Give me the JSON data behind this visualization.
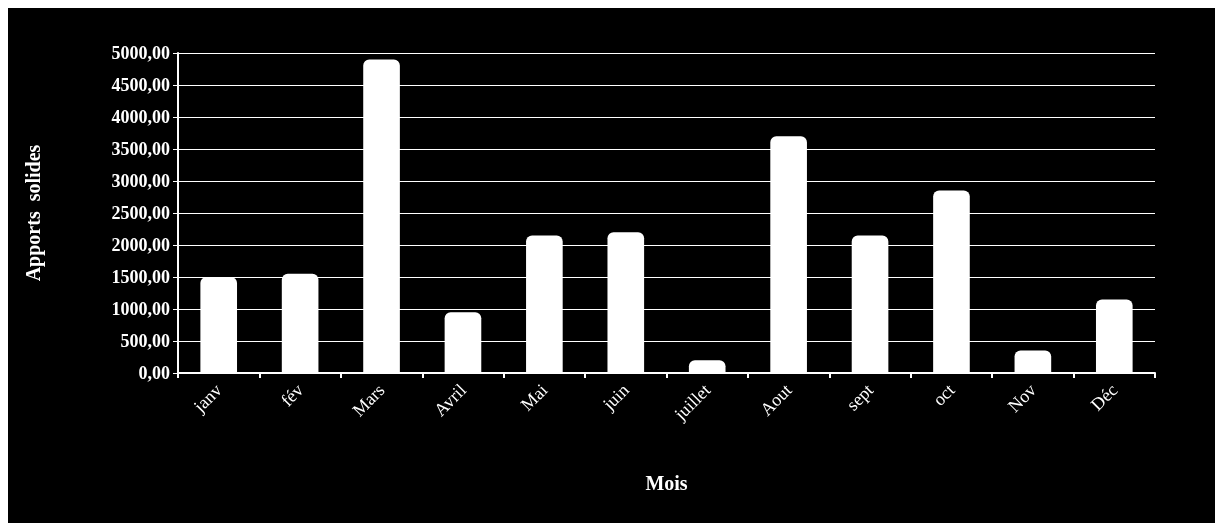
{
  "chart_data": {
    "type": "bar",
    "xlabel": "Mois",
    "ylabel": "Apports  solides",
    "categories": [
      "janv",
      "fév",
      "Mars",
      "Avril",
      "Mai",
      "juin",
      "juillet",
      "Aout",
      "sept",
      "oct",
      "Nov",
      "Déc"
    ],
    "values": [
      1500,
      1550,
      4900,
      950,
      2150,
      2200,
      200,
      3700,
      2150,
      2850,
      350,
      1150
    ],
    "color": "#ffffff",
    "ylim": [
      0,
      5000
    ],
    "yticks": [
      {
        "value": 0,
        "label": "0,00"
      },
      {
        "value": 500,
        "label": "500,00"
      },
      {
        "value": 1000,
        "label": "1000,00"
      },
      {
        "value": 1500,
        "label": "1500,00"
      },
      {
        "value": 2000,
        "label": "2000,00"
      },
      {
        "value": 2500,
        "label": "2500,00"
      },
      {
        "value": 3000,
        "label": "3000,00"
      },
      {
        "value": 3500,
        "label": "3500,00"
      },
      {
        "value": 4000,
        "label": "4000,00"
      },
      {
        "value": 4500,
        "label": "4500,00"
      },
      {
        "value": 5000,
        "label": "5000,00"
      }
    ],
    "grid": "y"
  }
}
